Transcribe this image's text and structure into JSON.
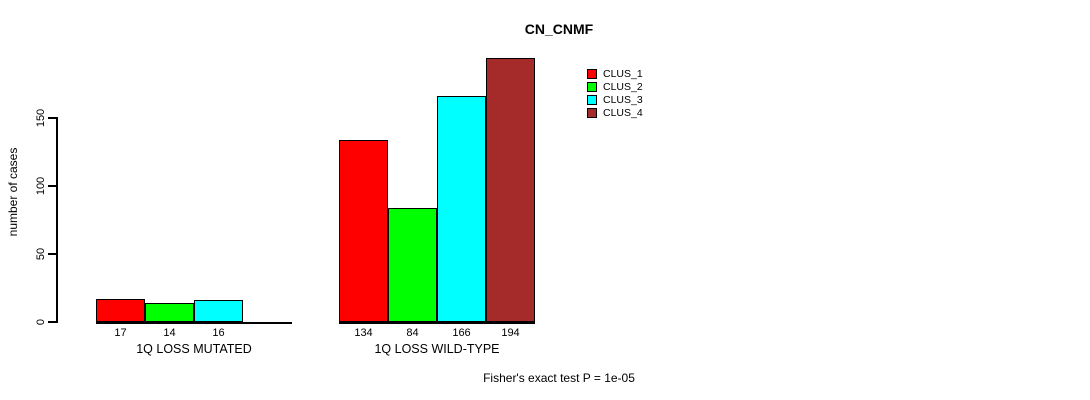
{
  "chart_data": {
    "type": "bar",
    "title": "CN_CNMF",
    "ylabel": "number of cases",
    "ylim": [
      0,
      200
    ],
    "yticks": [
      0,
      50,
      100,
      150
    ],
    "grid": false,
    "legend_position": "top-right",
    "categories": [
      "1Q LOSS MUTATED",
      "1Q LOSS WILD-TYPE"
    ],
    "series": [
      {
        "name": "CLUS_1",
        "color": "#ff0000",
        "values": [
          17,
          134
        ]
      },
      {
        "name": "CLUS_2",
        "color": "#00ff00",
        "values": [
          14,
          84
        ]
      },
      {
        "name": "CLUS_3",
        "color": "#00ffff",
        "values": [
          16,
          166
        ]
      },
      {
        "name": "CLUS_4",
        "color": "#a52a2a",
        "values": [
          null,
          194
        ]
      }
    ],
    "bar_value_labels": [
      [
        "17",
        "14",
        "16",
        ""
      ],
      [
        "134",
        "84",
        "166",
        "194"
      ]
    ],
    "footnote": "Fisher's exact test P = 1e-05"
  },
  "colors": {
    "background": "#ffffff",
    "axis": "#000000",
    "text": "#000000",
    "bar_border": "#000000"
  }
}
